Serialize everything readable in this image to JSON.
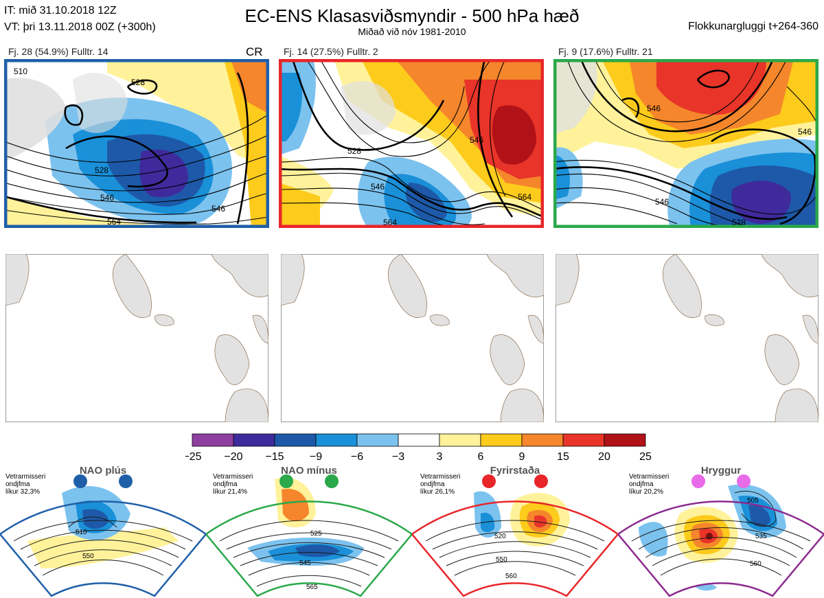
{
  "header": {
    "it_line": "IT: mið 31.10.2018 12Z",
    "vt_line": "VT: þri 13.11.2018 00Z  (+300h)",
    "title": "EC-ENS Klasasviðsmyndir - 500 hPa hæð",
    "subtitle": "Miðað við nóv 1981-2010",
    "window": "Flokkunargluggi t+264-360"
  },
  "clusters": [
    {
      "label": "Fj. 28 (54.9%)   Fulltr. 14",
      "tag": "CR",
      "frame_color": "#1f5fa8",
      "contours": [
        "510",
        "528",
        "528",
        "546",
        "546",
        "564"
      ]
    },
    {
      "label": "Fj. 14 (27.5%)   Fulltr. 2",
      "tag": "",
      "frame_color": "#e8262a",
      "contours": [
        "528",
        "546",
        "546",
        "564",
        "564"
      ]
    },
    {
      "label": "Fj. 9 (17.6%)   Fulltr. 21",
      "tag": "",
      "frame_color": "#2aa84a",
      "contours": [
        "546",
        "546",
        "528",
        "546"
      ]
    }
  ],
  "legend": {
    "ticks": [
      "−25",
      "−20",
      "−15",
      "−9",
      "−6",
      "−3",
      "3",
      "6",
      "9",
      "15",
      "20",
      "25"
    ],
    "colors": [
      "#8e3fa0",
      "#3f2a9c",
      "#1d59a8",
      "#1a90d8",
      "#7cc2ee",
      "#ffffff",
      "#fff29a",
      "#fdcb1c",
      "#f5862b",
      "#e83429",
      "#b01217"
    ]
  },
  "regimes": [
    {
      "name": "NAO plús",
      "info_lines": [
        "Vetrarmisseri",
        "ondjfma",
        "líkur 32,3%"
      ],
      "color": "#1f5fa8",
      "contours": [
        "510",
        "550"
      ]
    },
    {
      "name": "NAO mínus",
      "info_lines": [
        "Vetrarmisseri",
        "ondjfma",
        "líkur 21,4%"
      ],
      "color": "#2aa84a",
      "contours": [
        "525",
        "545",
        "565"
      ]
    },
    {
      "name": "Fyrirstaða",
      "info_lines": [
        "Vetrarmisseri",
        "ondjfma",
        "líkur 26,1%"
      ],
      "color": "#e8262a",
      "contours": [
        "520",
        "550",
        "560"
      ]
    },
    {
      "name": "Hryggur",
      "info_lines": [
        "Vetrarmisseri",
        "ondjfma",
        "líkur 20,2%"
      ],
      "color": "#8b2a8e",
      "dot_color": "#e86be8",
      "contours": [
        "505",
        "535",
        "560"
      ]
    }
  ]
}
